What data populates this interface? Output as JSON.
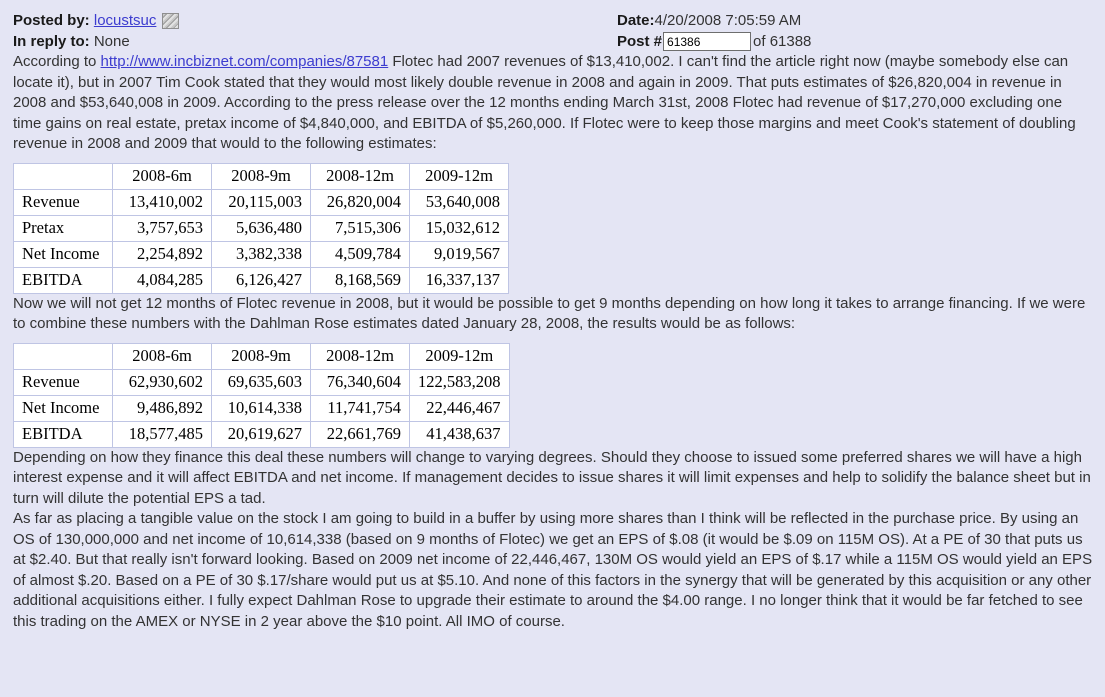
{
  "colors": {
    "page_background": "#e4e5f4",
    "body_text": "#333333",
    "link": "#3c3ccf",
    "table_border": "#bfc5e4",
    "table_background": "#ffffff"
  },
  "header": {
    "posted_by_label": "Posted by:",
    "posted_by_value": "locustsuc",
    "mail_icon": "mail-icon",
    "in_reply_label": "In reply to:",
    "in_reply_value": "None",
    "date_label": "Date:",
    "date_value": "4/20/2008 7:05:59 AM",
    "post_label": "Post #",
    "post_number_value": "61386",
    "post_of_text": "of 61388"
  },
  "paragraphs": {
    "p1_before_link": "According to ",
    "p1_link": "http://www.incbiznet.com/companies/87581",
    "p1_after_link": " Flotec had 2007 revenues of $13,410,002. I can't find the article right now (maybe somebody else can locate it), but in 2007 Tim Cook stated that they would most likely double revenue in 2008 and again in 2009. That puts estimates of $26,820,004 in revenue in 2008 and $53,640,008 in 2009. According to the press release over the 12 months ending March 31st, 2008 Flotec had revenue of $17,270,000 excluding one time gains on real estate, pretax income of $4,840,000, and EBITDA of $5,260,000. If Flotec were to keep those margins and meet Cook's statement of doubling revenue in 2008 and 2009 that would to the following estimates:",
    "p2": "Now we will not get 12 months of Flotec revenue in 2008, but it would be possible to get 9 months depending on how long it takes to arrange financing. If we were to combine these numbers with the Dahlman Rose estimates dated January 28, 2008, the results would be as follows:",
    "p3": "Depending on how they finance this deal these numbers will change to varying degrees. Should they choose to issued some preferred shares we will have a high interest expense and it will affect EBITDA and net income. If management decides to issue shares it will limit expenses and help to solidify the balance sheet but in turn will dilute the potential EPS a tad.",
    "p4": "As far as placing a tangible value on the stock I am going to build in a buffer by using more shares than I think will be reflected in the purchase price. By using an OS of 130,000,000 and net income of 10,614,338 (based on 9 months of Flotec) we get an EPS of $.08 (it would be $.09 on 115M OS). At a PE of 30 that puts us at $2.40. But that really isn't forward looking. Based on 2009 net income of 22,446,467, 130M OS would yield an EPS of $.17 while a 115M OS would yield an EPS of almost $.20. Based on a PE of 30 $.17/share would put us at $5.10. And none of this factors in the synergy that will be generated by this acquisition or any other additional acquisitions either. I fully expect Dahlman Rose to upgrade their estimate to around the $4.00 range. I no longer think that it would be far fetched to see this trading on the AMEX or NYSE in 2 year above the $10 point. All IMO of course."
  },
  "table1": {
    "headers": [
      "",
      "2008-6m",
      "2008-9m",
      "2008-12m",
      "2009-12m"
    ],
    "rows": [
      {
        "label": "Revenue",
        "values": [
          "13,410,002",
          "20,115,003",
          "26,820,004",
          "53,640,008"
        ]
      },
      {
        "label": "Pretax",
        "values": [
          "3,757,653",
          "5,636,480",
          "7,515,306",
          "15,032,612"
        ]
      },
      {
        "label": "Net Income",
        "values": [
          "2,254,892",
          "3,382,338",
          "4,509,784",
          "9,019,567"
        ]
      },
      {
        "label": "EBITDA",
        "values": [
          "4,084,285",
          "6,126,427",
          "8,168,569",
          "16,337,137"
        ]
      }
    ]
  },
  "table2": {
    "headers": [
      "",
      "2008-6m",
      "2008-9m",
      "2008-12m",
      "2009-12m"
    ],
    "rows": [
      {
        "label": "Revenue",
        "values": [
          "62,930,602",
          "69,635,603",
          "76,340,604",
          "122,583,208"
        ]
      },
      {
        "label": "Net Income",
        "values": [
          "9,486,892",
          "10,614,338",
          "11,741,754",
          "22,446,467"
        ]
      },
      {
        "label": "EBITDA",
        "values": [
          "18,577,485",
          "20,619,627",
          "22,661,769",
          "41,438,637"
        ]
      }
    ]
  }
}
